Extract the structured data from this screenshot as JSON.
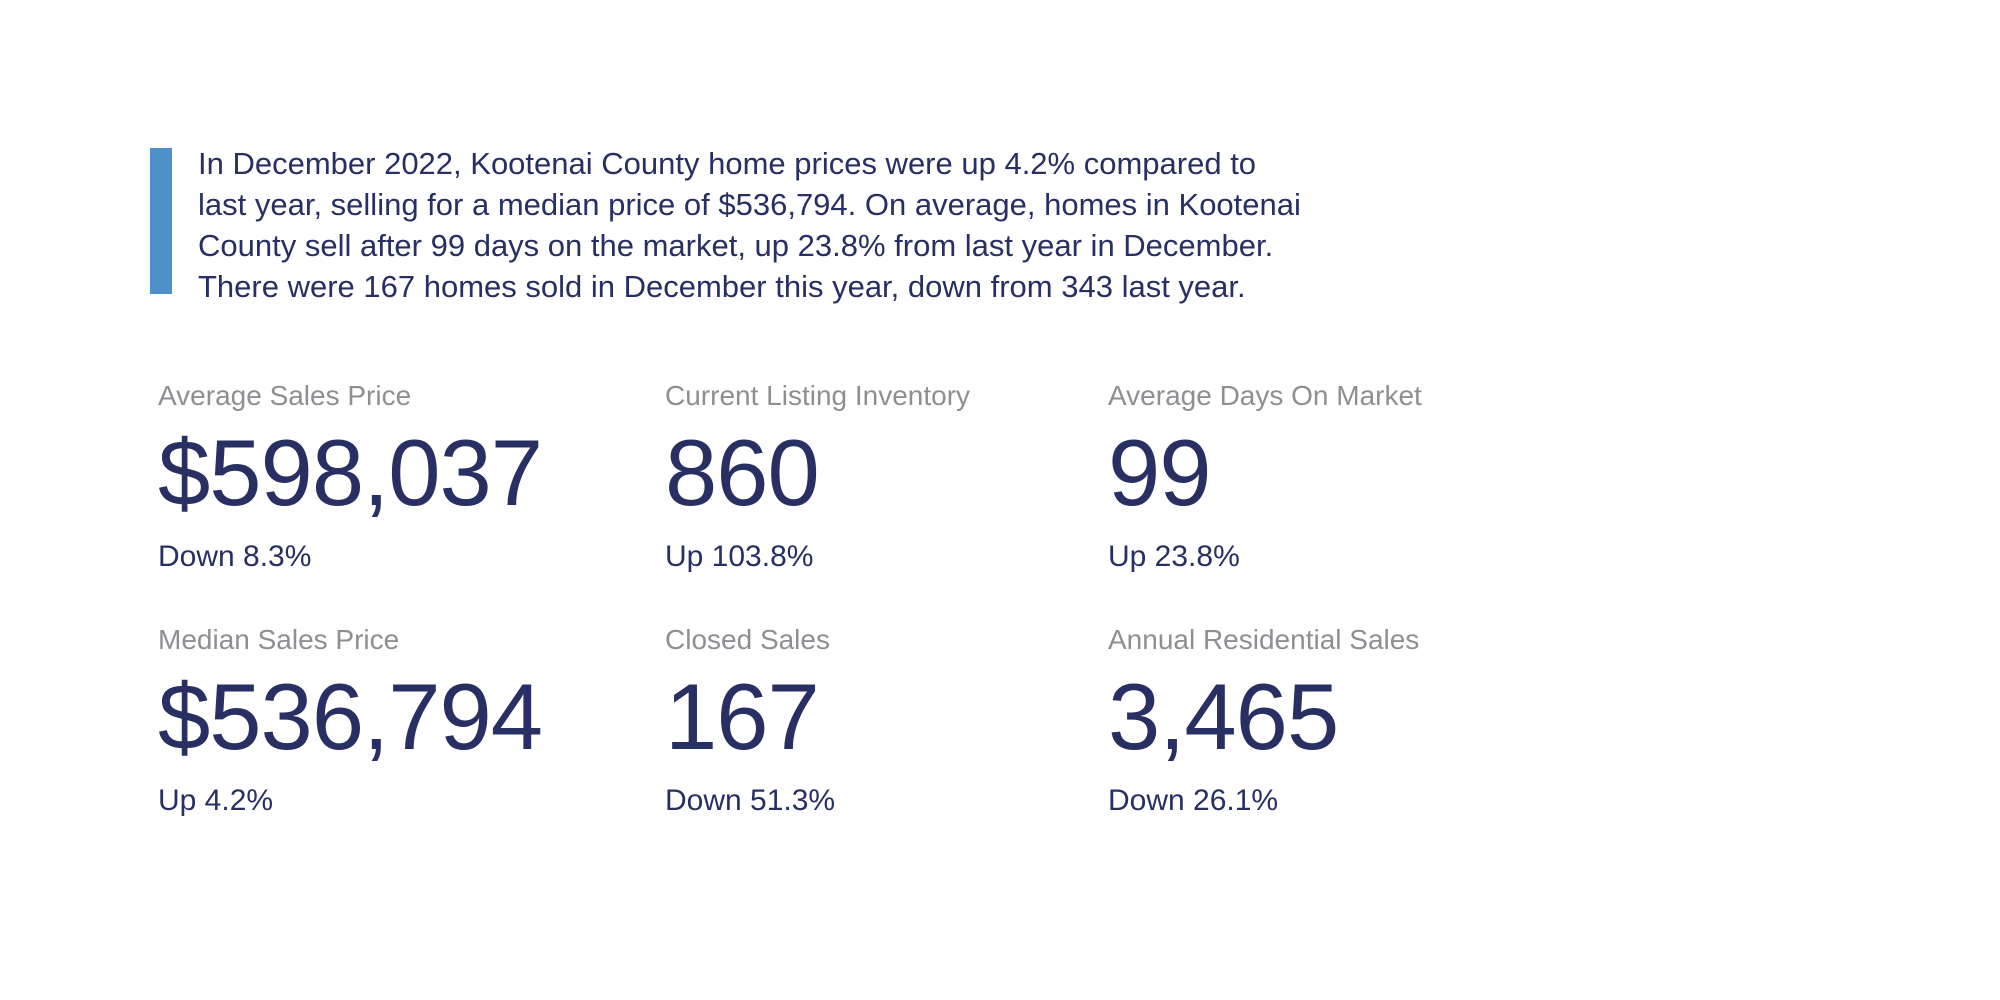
{
  "colors": {
    "navy": "#272F63",
    "gray": "#8D8F93",
    "accent_blue": "#4E90C9",
    "page_bg": "#FFFFFF"
  },
  "summary": {
    "text": "In December 2022, Kootenai County home prices were up 4.2% compared to\nlast year, selling for a median price of $536,794. On average, homes in Kootenai\nCounty sell after 99 days on the market, up 23.8% from last year in December.\nThere were 167 homes sold in December this year, down from 343 last year."
  },
  "stats": [
    {
      "label": "Average Sales Price",
      "value": "$598,037",
      "change": "Down 8.3%"
    },
    {
      "label": "Current Listing Inventory",
      "value": "860",
      "change": "Up 103.8%"
    },
    {
      "label": "Average Days On Market",
      "value": "99",
      "change": "Up 23.8%"
    },
    {
      "label": "Median Sales Price",
      "value": "$536,794",
      "change": "Up 4.2%"
    },
    {
      "label": "Closed Sales",
      "value": "167",
      "change": "Down 51.3%"
    },
    {
      "label": "Annual Residential Sales",
      "value": "3,465",
      "change": "Down 26.1%"
    }
  ]
}
